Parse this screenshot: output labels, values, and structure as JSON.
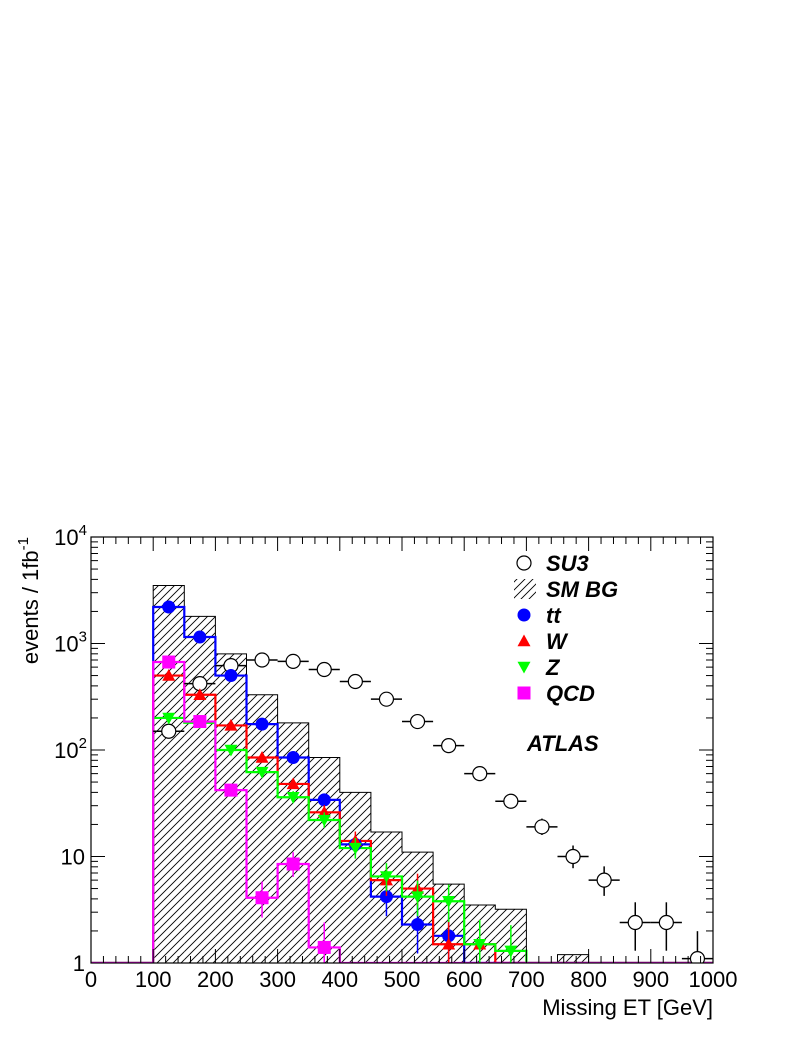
{
  "chart_data": {
    "type": "histogram",
    "xlabel": "Missing ET [GeV]",
    "ylabel": "events / 1fb",
    "ylabel_superscript": "-1",
    "xlim": [
      0,
      1000
    ],
    "ylim": [
      1,
      10000
    ],
    "y_scale": "log",
    "x_ticks": [
      0,
      100,
      200,
      300,
      400,
      500,
      600,
      700,
      800,
      900,
      1000
    ],
    "y_ticks": [
      {
        "value": 1,
        "label": "1",
        "sup": ""
      },
      {
        "value": 10,
        "label": "10",
        "sup": ""
      },
      {
        "value": 100,
        "label": "10",
        "sup": "2"
      },
      {
        "value": 1000,
        "label": "10",
        "sup": "3"
      },
      {
        "value": 10000,
        "label": "10",
        "sup": "4"
      }
    ],
    "annotation": "ATLAS",
    "bin_width": 50,
    "bin_starts": [
      100,
      150,
      200,
      250,
      300,
      350,
      400,
      450,
      500,
      550,
      600,
      650,
      700,
      750,
      800,
      850,
      900,
      950
    ],
    "legend_placement": "top-right",
    "series": [
      {
        "name": "SU3",
        "kind": "points-open",
        "color": "#000000",
        "values": [
          150,
          420,
          620,
          700,
          680,
          570,
          440,
          300,
          185,
          110,
          60,
          33,
          19,
          10,
          6,
          2.4,
          2.4,
          1.1
        ]
      },
      {
        "name": "SM BG",
        "kind": "hatched-hist",
        "color": "#000000",
        "values": [
          3500,
          1800,
          800,
          330,
          180,
          85,
          40,
          17,
          11,
          5.5,
          3.5,
          3.2,
          0,
          1.2,
          0,
          0,
          0,
          0
        ]
      },
      {
        "name": "tt",
        "kind": "points-hist",
        "color": "#0000ff",
        "values": [
          2200,
          1150,
          500,
          175,
          85,
          34,
          13,
          4.2,
          2.3,
          1.8,
          1,
          1,
          0,
          0,
          0,
          0,
          0,
          0
        ]
      },
      {
        "name": "W",
        "kind": "points-hist",
        "color": "#ff0000",
        "values": [
          500,
          330,
          170,
          85,
          48,
          26,
          14,
          6,
          5,
          1.5,
          1.5,
          1,
          0,
          0,
          0,
          0,
          0,
          0
        ]
      },
      {
        "name": "Z",
        "kind": "points-hist",
        "color": "#00ff00",
        "values": [
          200,
          180,
          100,
          62,
          36,
          22,
          12,
          6.5,
          4.2,
          3.8,
          1.5,
          1.3,
          0,
          0,
          0,
          0,
          0,
          0
        ]
      },
      {
        "name": "QCD",
        "kind": "points-hist",
        "color": "#ff00ff",
        "values": [
          670,
          185,
          42,
          4.1,
          8.5,
          1.4,
          0,
          0,
          0,
          0,
          0,
          0,
          0,
          0,
          0,
          0,
          0,
          0
        ]
      }
    ]
  }
}
